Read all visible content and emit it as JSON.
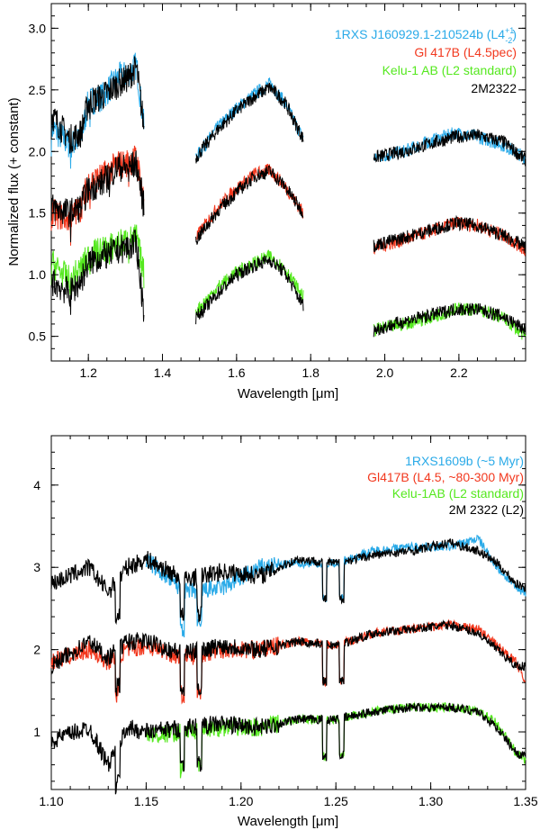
{
  "colors": {
    "blue": "#2aaae8",
    "red": "#f2381e",
    "green": "#55e81f",
    "black": "#000000"
  },
  "chart_data": [
    {
      "type": "line",
      "xlabel": "Wavelength [μm]",
      "ylabel": "Normalized flux (+ constant)",
      "xlim": [
        1.1,
        2.38
      ],
      "ylim": [
        0.3,
        3.2
      ],
      "xticks": [
        "1.2",
        "1.4",
        "1.6",
        "1.8",
        "2.0",
        "2.2"
      ],
      "yticks": [
        "0.5",
        "1.0",
        "1.5",
        "2.0",
        "2.5",
        "3.0"
      ],
      "legend": [
        {
          "text": "1RXS J160929.1-210524b (L4",
          "sup": "+1",
          "sub": "-2",
          "tail": ")",
          "color": "#2aaae8"
        },
        {
          "text": "Gl 417B (L4.5pec)",
          "color": "#f2381e"
        },
        {
          "text": "Kelu-1 AB (L2 standard)",
          "color": "#55e81f"
        },
        {
          "text": "2M2322",
          "color": "#000000"
        }
      ],
      "legend_position": "top-right",
      "bands": [
        {
          "name": "J",
          "x": [
            1.1,
            1.15,
            1.18,
            1.2,
            1.24,
            1.28,
            1.3,
            1.33,
            1.35
          ]
        },
        {
          "name": "H",
          "x": [
            1.49,
            1.55,
            1.6,
            1.65,
            1.69,
            1.73,
            1.78
          ]
        },
        {
          "name": "K",
          "x": [
            1.97,
            2.05,
            2.12,
            2.19,
            2.25,
            2.32,
            2.38
          ]
        }
      ],
      "series": [
        {
          "name": "1RXS J160929.1-210524b",
          "color": "#2aaae8",
          "x_range": [
            1.13,
            1.33
          ],
          "bands": {
            "J": [
              2.2,
              2.05,
              2.1,
              2.4,
              2.45,
              2.6,
              2.62,
              2.7,
              2.2
            ],
            "H": [
              1.95,
              2.2,
              2.35,
              2.47,
              2.55,
              2.4,
              2.1
            ],
            "K": [
              1.95,
              2.0,
              2.08,
              2.15,
              2.12,
              2.05,
              1.95
            ]
          }
        },
        {
          "name": "2M2322 (upper)",
          "color": "#000000",
          "bands": {
            "J": [
              2.3,
              2.1,
              2.15,
              2.4,
              2.45,
              2.55,
              2.58,
              2.68,
              2.2
            ],
            "H": [
              1.95,
              2.18,
              2.33,
              2.45,
              2.52,
              2.4,
              2.1
            ],
            "K": [
              1.95,
              2.0,
              2.06,
              2.12,
              2.13,
              2.08,
              1.93
            ]
          }
        },
        {
          "name": "Gl 417B (L4.5pec)",
          "color": "#f2381e",
          "bands": {
            "J": [
              1.5,
              1.45,
              1.55,
              1.75,
              1.8,
              1.9,
              1.9,
              1.95,
              1.6
            ],
            "H": [
              1.3,
              1.55,
              1.7,
              1.82,
              1.85,
              1.72,
              1.5
            ],
            "K": [
              1.22,
              1.28,
              1.35,
              1.42,
              1.4,
              1.32,
              1.2
            ]
          }
        },
        {
          "name": "2M2322 (middle)",
          "color": "#000000",
          "bands": {
            "J": [
              1.55,
              1.5,
              1.55,
              1.7,
              1.75,
              1.88,
              1.86,
              1.9,
              1.55
            ],
            "H": [
              1.28,
              1.52,
              1.67,
              1.8,
              1.84,
              1.72,
              1.5
            ],
            "K": [
              1.24,
              1.3,
              1.36,
              1.42,
              1.4,
              1.32,
              1.22
            ]
          }
        },
        {
          "name": "Kelu-1 AB (L2 standard)",
          "color": "#55e81f",
          "bands": {
            "J": [
              1.1,
              0.95,
              1.05,
              1.15,
              1.2,
              1.25,
              1.27,
              1.3,
              1.0
            ],
            "H": [
              0.7,
              0.9,
              1.02,
              1.1,
              1.15,
              1.05,
              0.82
            ],
            "K": [
              0.55,
              0.6,
              0.65,
              0.72,
              0.72,
              0.65,
              0.5
            ]
          }
        },
        {
          "name": "2M2322 (lower)",
          "color": "#000000",
          "bands": {
            "J": [
              0.95,
              0.85,
              0.95,
              1.1,
              1.15,
              1.2,
              1.22,
              1.25,
              0.7
            ],
            "H": [
              0.65,
              0.85,
              1.0,
              1.08,
              1.12,
              1.02,
              0.75
            ],
            "K": [
              0.55,
              0.62,
              0.67,
              0.72,
              0.72,
              0.66,
              0.55
            ]
          }
        }
      ]
    },
    {
      "type": "line",
      "xlabel": "Wavelength [μm]",
      "ylabel": "",
      "xlim": [
        1.1,
        1.35
      ],
      "ylim": [
        0.3,
        4.6
      ],
      "xticks": [
        "1.10",
        "1.15",
        "1.20",
        "1.25",
        "1.30",
        "1.35"
      ],
      "yticks": [
        "1",
        "2",
        "3",
        "4"
      ],
      "legend": [
        {
          "text": "1RXS1609b (~5 Myr)",
          "color": "#2aaae8"
        },
        {
          "text": "Gl417B (L4.5, ~80-300 Myr)",
          "color": "#f2381e"
        },
        {
          "text": "Kelu-1AB (L2 standard)",
          "color": "#55e81f"
        },
        {
          "text": "2M 2322 (L2)",
          "color": "#000000"
        }
      ],
      "legend_position": "top-right",
      "x": [
        1.1,
        1.12,
        1.13,
        1.14,
        1.15,
        1.17,
        1.19,
        1.21,
        1.23,
        1.25,
        1.27,
        1.29,
        1.31,
        1.325,
        1.335,
        1.345,
        1.35
      ],
      "series": [
        {
          "name": "1RXS1609b (~5 Myr)",
          "color": "#2aaae8",
          "values": [
            null,
            null,
            null,
            null,
            3.1,
            2.7,
            2.75,
            3.0,
            3.05,
            3.05,
            3.2,
            3.25,
            3.25,
            3.35,
            3.0,
            2.75,
            2.7
          ]
        },
        {
          "name": "2M 2322 (L2) upper",
          "color": "#000000",
          "values": [
            2.8,
            3.0,
            2.7,
            3.0,
            3.1,
            2.85,
            2.95,
            2.9,
            3.1,
            3.05,
            3.15,
            3.2,
            3.3,
            3.2,
            3.05,
            2.8,
            2.75
          ]
        },
        {
          "name": "Gl417B (L4.5, ~80-300 Myr)",
          "color": "#f2381e",
          "values": [
            1.85,
            2.0,
            1.85,
            2.0,
            2.05,
            1.9,
            2.0,
            2.0,
            2.1,
            2.05,
            2.2,
            2.25,
            2.3,
            2.25,
            2.05,
            1.85,
            1.6
          ]
        },
        {
          "name": "2M 2322 (L2) middle",
          "color": "#000000",
          "values": [
            1.8,
            2.1,
            1.9,
            2.1,
            2.1,
            1.95,
            2.05,
            2.0,
            2.1,
            2.05,
            2.2,
            2.25,
            2.3,
            2.2,
            2.0,
            1.8,
            1.8
          ]
        },
        {
          "name": "Kelu-1AB (L2 standard)",
          "color": "#55e81f",
          "values": [
            null,
            null,
            null,
            null,
            0.95,
            1.0,
            1.05,
            1.05,
            1.15,
            1.15,
            1.25,
            1.3,
            1.3,
            1.25,
            1.1,
            0.75,
            0.65
          ]
        },
        {
          "name": "2M 2322 (L2) lower",
          "color": "#000000",
          "values": [
            0.9,
            1.05,
            0.6,
            1.05,
            1.0,
            1.05,
            1.1,
            1.05,
            1.15,
            1.15,
            1.25,
            1.3,
            1.3,
            1.25,
            1.05,
            0.75,
            0.7
          ]
        }
      ]
    }
  ]
}
